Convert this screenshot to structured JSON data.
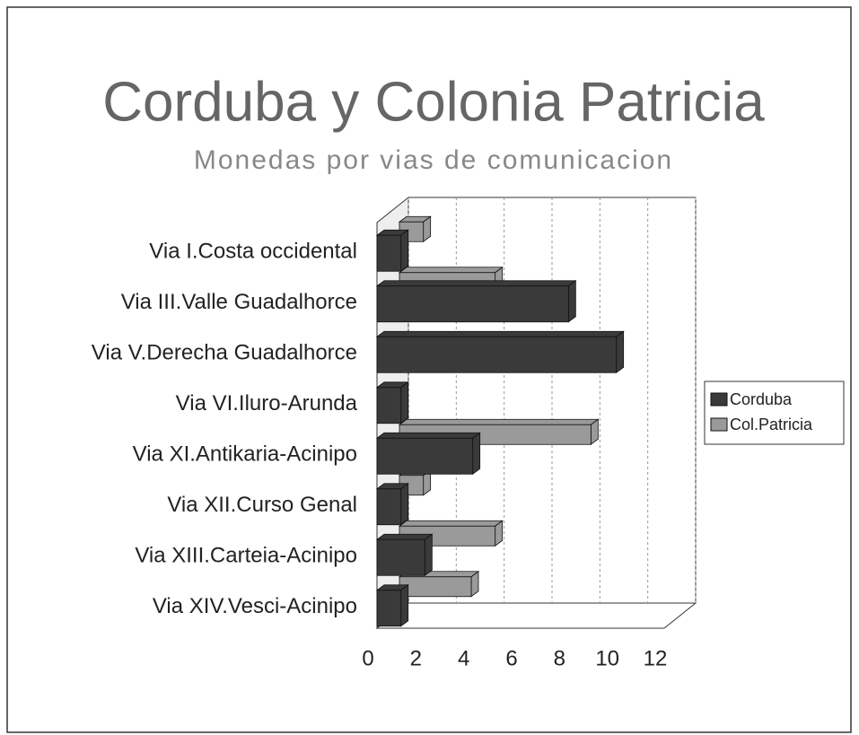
{
  "chart_data": {
    "type": "bar",
    "orientation": "horizontal",
    "title": "Corduba y Colonia Patricia",
    "subtitle": "Monedas por vias de comunicacion",
    "categories": [
      "Via I.Costa occidental",
      "Via III.Valle Guadalhorce",
      "Via V.Derecha Guadalhorce",
      "Via VI.Iluro-Arunda",
      "Via XI.Antikaria-Acinipo",
      "Via XII.Curso Genal",
      "Via XIII.Carteia-Acinipo",
      "Via XIV.Vesci-Acinipo"
    ],
    "series": [
      {
        "name": "Corduba",
        "color": "#3a3a3a",
        "values": [
          1,
          8,
          10,
          1,
          4,
          1,
          2,
          1
        ]
      },
      {
        "name": "Col.Patricia",
        "color": "#9a9a9a",
        "values": [
          1,
          4,
          0,
          0,
          8,
          1,
          4,
          3
        ]
      }
    ],
    "xlim": [
      0,
      12
    ],
    "xticks": [
      0,
      2,
      4,
      6,
      8,
      10,
      12
    ],
    "grid": true,
    "legend": "right"
  }
}
